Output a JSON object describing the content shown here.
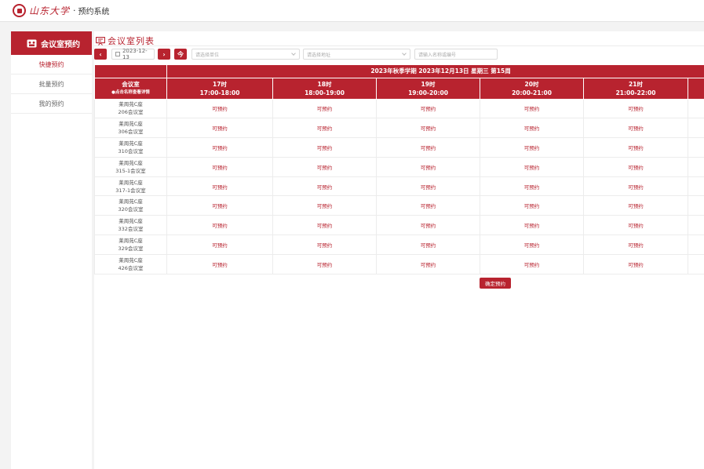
{
  "header": {
    "logo_text": "山东大学",
    "separator": "·",
    "system_title": "预约系统"
  },
  "sidebar": {
    "title": "会议室预约",
    "items": [
      {
        "label": "快捷预约",
        "active": true
      },
      {
        "label": "批量预约",
        "active": false
      },
      {
        "label": "我的预约",
        "active": false
      }
    ]
  },
  "page": {
    "title": "会议室列表"
  },
  "filters": {
    "prev_label": "‹",
    "date": "2023-12-13",
    "next_label": "›",
    "today_label": "今",
    "unit_placeholder": "请选择单位",
    "address_placeholder": "请选择地址",
    "search_placeholder": "请输入名称或编号"
  },
  "table": {
    "banner": "2023年秋季学期 2023年12月13日 星期三 第15周",
    "room_col_title": "会议室",
    "room_col_hint": "●点击名称查看详情",
    "slots": [
      {
        "hour": "17时",
        "range": "17:00-18:00"
      },
      {
        "hour": "18时",
        "range": "18:00-19:00"
      },
      {
        "hour": "19时",
        "range": "19:00-20:00"
      },
      {
        "hour": "20时",
        "range": "20:00-21:00"
      },
      {
        "hour": "21时",
        "range": "21:00-22:00"
      }
    ],
    "rooms": [
      {
        "building": "莱周苑C座",
        "room": "206会议室"
      },
      {
        "building": "莱周苑C座",
        "room": "306会议室"
      },
      {
        "building": "莱周苑C座",
        "room": "310会议室"
      },
      {
        "building": "莱周苑C座",
        "room": "315-1会议室"
      },
      {
        "building": "莱周苑C座",
        "room": "317-1会议室"
      },
      {
        "building": "莱周苑C座",
        "room": "320会议室"
      },
      {
        "building": "莱周苑C座",
        "room": "332会议室"
      },
      {
        "building": "莱周苑C座",
        "room": "329会议室"
      },
      {
        "building": "莱周苑C座",
        "room": "426会议室"
      }
    ],
    "slot_status": "可预约"
  },
  "confirm_label": "确定预约",
  "colors": {
    "accent": "#b8232f",
    "background": "#f3f3f3"
  }
}
